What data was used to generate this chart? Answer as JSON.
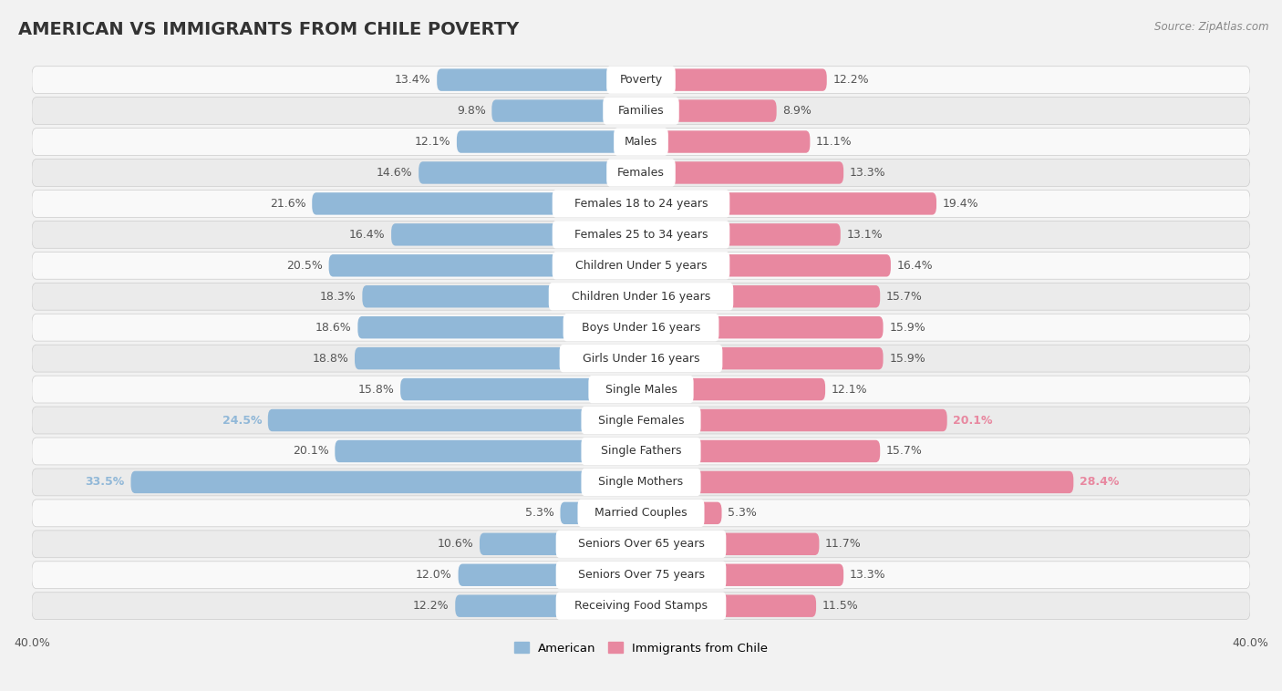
{
  "title": "AMERICAN VS IMMIGRANTS FROM CHILE POVERTY",
  "source": "Source: ZipAtlas.com",
  "categories": [
    "Poverty",
    "Families",
    "Males",
    "Females",
    "Females 18 to 24 years",
    "Females 25 to 34 years",
    "Children Under 5 years",
    "Children Under 16 years",
    "Boys Under 16 years",
    "Girls Under 16 years",
    "Single Males",
    "Single Females",
    "Single Fathers",
    "Single Mothers",
    "Married Couples",
    "Seniors Over 65 years",
    "Seniors Over 75 years",
    "Receiving Food Stamps"
  ],
  "american_values": [
    13.4,
    9.8,
    12.1,
    14.6,
    21.6,
    16.4,
    20.5,
    18.3,
    18.6,
    18.8,
    15.8,
    24.5,
    20.1,
    33.5,
    5.3,
    10.6,
    12.0,
    12.2
  ],
  "chile_values": [
    12.2,
    8.9,
    11.1,
    13.3,
    19.4,
    13.1,
    16.4,
    15.7,
    15.9,
    15.9,
    12.1,
    20.1,
    15.7,
    28.4,
    5.3,
    11.7,
    13.3,
    11.5
  ],
  "american_color": "#91b8d8",
  "chile_color": "#e888a0",
  "background_color": "#f2f2f2",
  "row_color_odd": "#f9f9f9",
  "row_color_even": "#ebebeb",
  "axis_limit": 40.0,
  "legend_american": "American",
  "legend_chile": "Immigrants from Chile",
  "title_fontsize": 14,
  "label_fontsize": 9,
  "value_fontsize": 9,
  "bold_rows": [
    11,
    13
  ]
}
